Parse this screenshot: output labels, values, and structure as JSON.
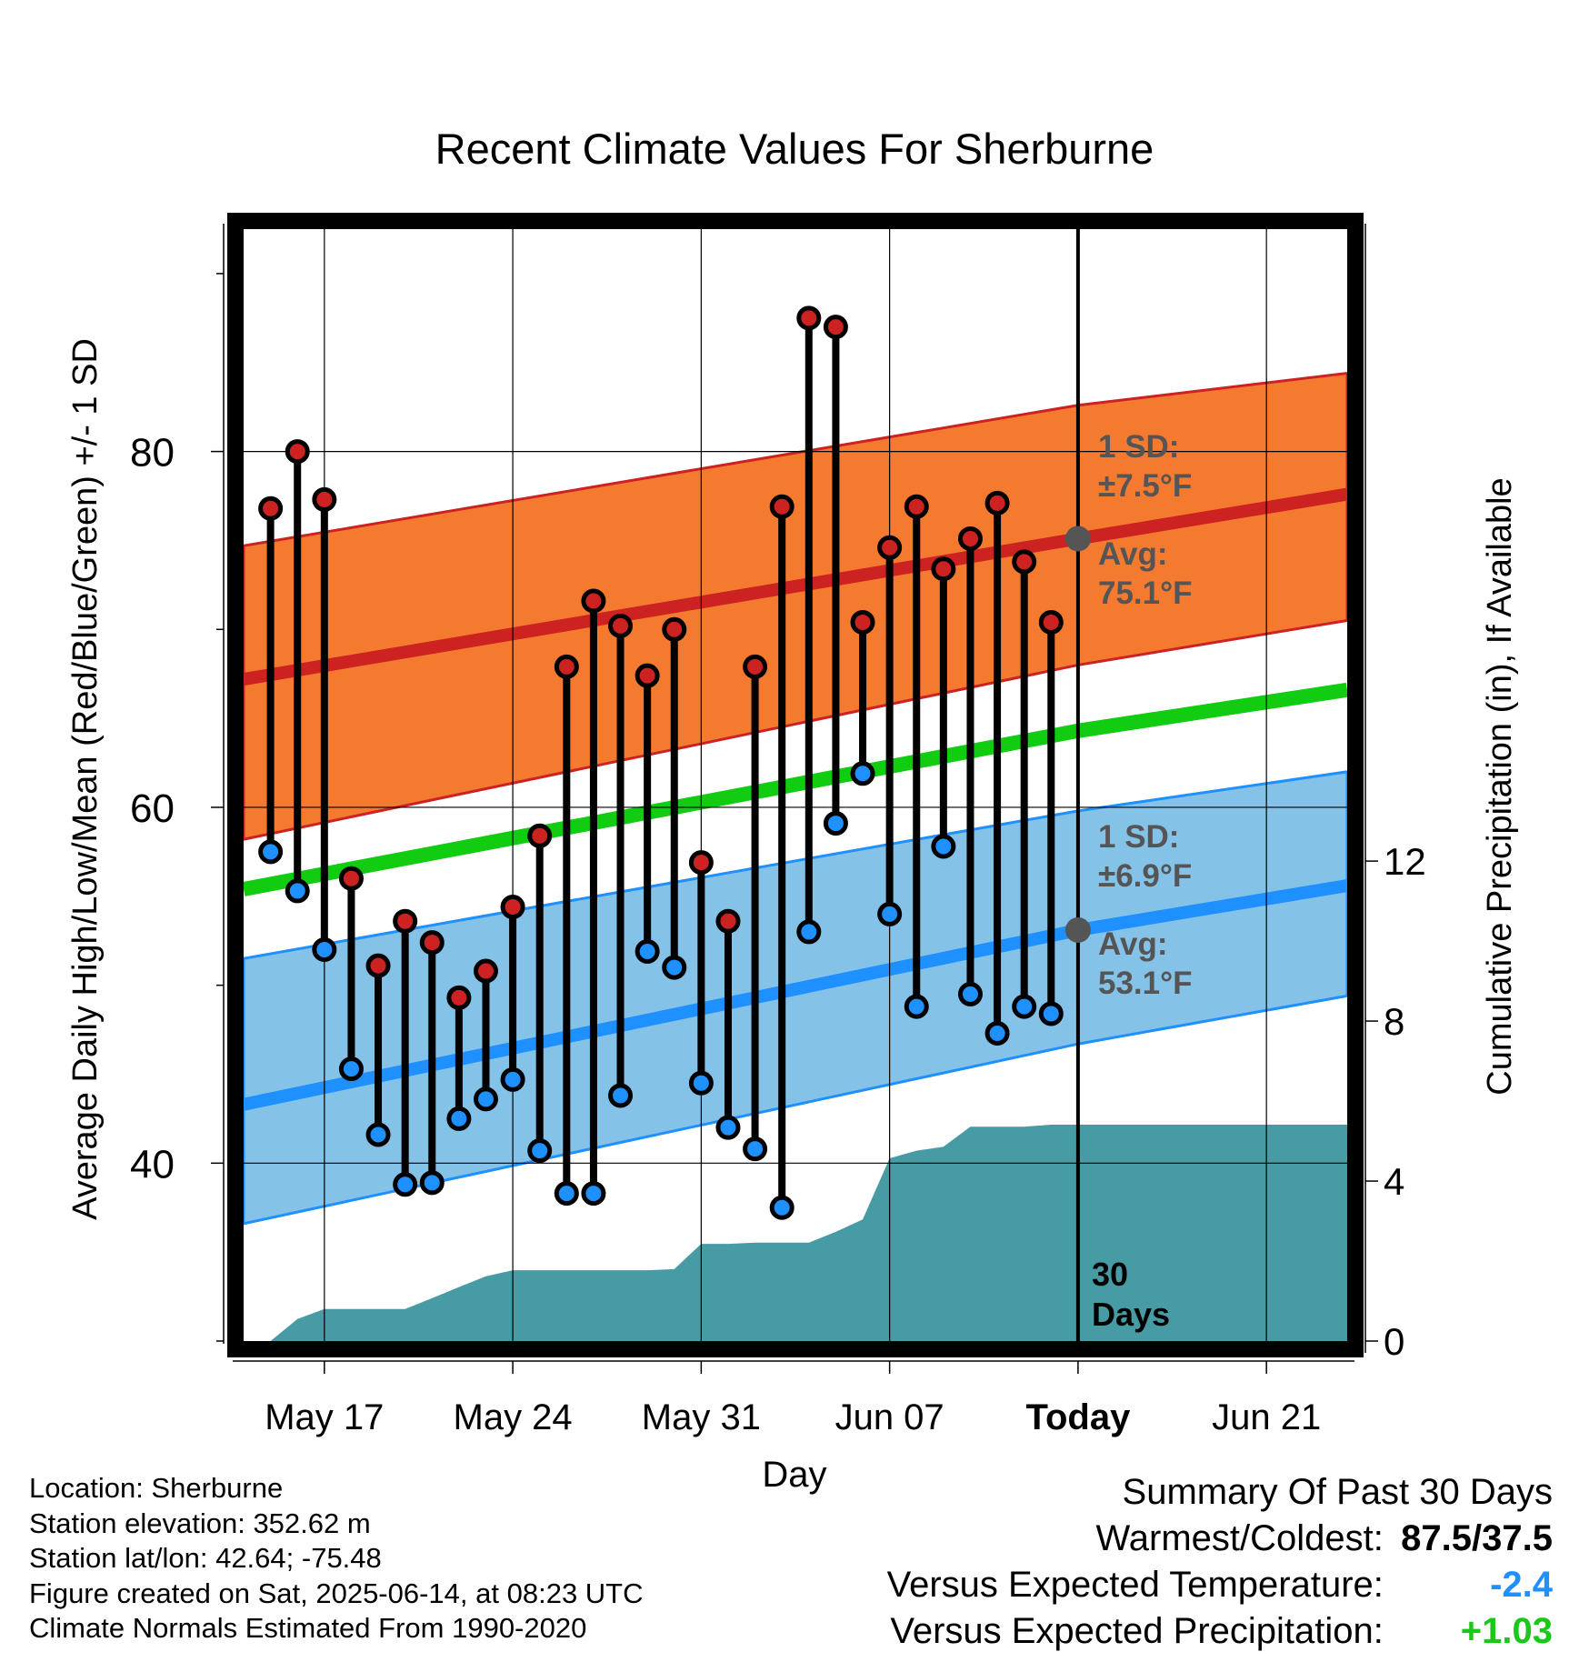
{
  "chart_data": {
    "type": "line",
    "title": "Recent Climate Values For Sherburne",
    "xlabel": "Day",
    "ylabel": "Average Daily High/Low/Mean (Red/Blue/Green) +/- 1 SD",
    "y2label": "Cumulative Precipitation (in), If Available",
    "x_tick_labels": [
      "May 17",
      "May 24",
      "May 31",
      "Jun 07",
      "Today",
      "Jun 21"
    ],
    "x_tick_dates": [
      "2025-05-17",
      "2025-05-24",
      "2025-05-31",
      "2025-06-07",
      "2025-06-14",
      "2025-06-21"
    ],
    "today": "2025-06-14",
    "xlim": [
      "2025-05-14",
      "2025-06-24"
    ],
    "ylim": [
      30,
      92.5
    ],
    "y_ticks": [
      40,
      60,
      80
    ],
    "y2lim": [
      0,
      27.8
    ],
    "y2_ticks": [
      0,
      4,
      8,
      12
    ],
    "grid": true,
    "colors": {
      "high": "#cc2222",
      "low": "#1e90ff",
      "mean": "#11cc11",
      "high_band": "#f47a30",
      "low_band": "#85c2e8",
      "precip": "#479ba4",
      "avg_marker": "#555555"
    },
    "normals": {
      "dates": [
        "2025-05-14",
        "2025-06-14",
        "2025-06-24"
      ],
      "high_mean": [
        67.2,
        75.1,
        77.6
      ],
      "high_upper": [
        74.7,
        82.6,
        84.4
      ],
      "high_lower": [
        58.2,
        68.0,
        70.5
      ],
      "low_mean": [
        43.3,
        53.1,
        55.6
      ],
      "low_upper": [
        51.5,
        59.8,
        62.0
      ],
      "low_lower": [
        36.6,
        46.7,
        49.4
      ],
      "avg_mean": [
        55.4,
        64.3,
        66.6
      ]
    },
    "series": [
      {
        "name": "High",
        "x": [
          "2025-05-15",
          "2025-05-16",
          "2025-05-17",
          "2025-05-18",
          "2025-05-19",
          "2025-05-20",
          "2025-05-21",
          "2025-05-22",
          "2025-05-23",
          "2025-05-24",
          "2025-05-25",
          "2025-05-26",
          "2025-05-27",
          "2025-05-28",
          "2025-05-29",
          "2025-05-30",
          "2025-05-31",
          "2025-06-01",
          "2025-06-02",
          "2025-06-03",
          "2025-06-04",
          "2025-06-05",
          "2025-06-06",
          "2025-06-07",
          "2025-06-08",
          "2025-06-09",
          "2025-06-10",
          "2025-06-11",
          "2025-06-12",
          "2025-06-13"
        ],
        "values": [
          76.8,
          80.0,
          77.3,
          56.0,
          51.1,
          53.6,
          52.4,
          49.3,
          50.8,
          54.4,
          58.4,
          67.9,
          71.6,
          70.2,
          67.4,
          70.0,
          56.9,
          53.6,
          67.9,
          76.9,
          87.5,
          87.0,
          70.4,
          74.6,
          76.9,
          73.4,
          75.1,
          77.1,
          73.8,
          70.4
        ]
      },
      {
        "name": "Low",
        "x": [
          "2025-05-15",
          "2025-05-16",
          "2025-05-17",
          "2025-05-18",
          "2025-05-19",
          "2025-05-20",
          "2025-05-21",
          "2025-05-22",
          "2025-05-23",
          "2025-05-24",
          "2025-05-25",
          "2025-05-26",
          "2025-05-27",
          "2025-05-28",
          "2025-05-29",
          "2025-05-30",
          "2025-05-31",
          "2025-06-01",
          "2025-06-02",
          "2025-06-03",
          "2025-06-04",
          "2025-06-05",
          "2025-06-06",
          "2025-06-07",
          "2025-06-08",
          "2025-06-09",
          "2025-06-10",
          "2025-06-11",
          "2025-06-12",
          "2025-06-13"
        ],
        "values": [
          57.5,
          55.3,
          52.0,
          45.3,
          41.6,
          38.8,
          38.9,
          42.5,
          43.6,
          44.7,
          40.7,
          38.3,
          38.3,
          43.8,
          51.9,
          51.0,
          44.5,
          42.0,
          40.8,
          37.5,
          53.0,
          59.1,
          61.9,
          54.0,
          48.8,
          57.8,
          49.5,
          47.3,
          48.8,
          48.4
        ]
      }
    ],
    "precipitation": {
      "x": [
        "2025-05-15",
        "2025-05-16",
        "2025-05-17",
        "2025-05-18",
        "2025-05-19",
        "2025-05-20",
        "2025-05-21",
        "2025-05-22",
        "2025-05-23",
        "2025-05-24",
        "2025-05-25",
        "2025-05-26",
        "2025-05-27",
        "2025-05-28",
        "2025-05-29",
        "2025-05-30",
        "2025-05-31",
        "2025-06-01",
        "2025-06-02",
        "2025-06-03",
        "2025-06-04",
        "2025-06-05",
        "2025-06-06",
        "2025-06-07",
        "2025-06-08",
        "2025-06-09",
        "2025-06-10",
        "2025-06-11",
        "2025-06-12",
        "2025-06-13",
        "2025-06-14",
        "2025-06-24"
      ],
      "values": [
        0.0,
        0.55,
        0.8,
        0.8,
        0.8,
        0.8,
        1.07,
        1.35,
        1.62,
        1.77,
        1.77,
        1.77,
        1.77,
        1.77,
        1.77,
        1.8,
        2.43,
        2.43,
        2.46,
        2.46,
        2.46,
        2.73,
        3.04,
        4.57,
        4.76,
        4.86,
        5.36,
        5.36,
        5.36,
        5.41,
        5.41,
        5.41
      ]
    },
    "annotations": {
      "high_sd": "1 SD:",
      "high_sd_value": "±7.5°F",
      "high_avg": "Avg:",
      "high_avg_value": "75.1°F",
      "low_sd": "1 SD:",
      "low_sd_value": "±6.9°F",
      "low_avg": "Avg:",
      "low_avg_value": "53.1°F",
      "days_count": "30",
      "days_label": "Days"
    }
  },
  "info": {
    "location": "Location: Sherburne",
    "elevation": "Station elevation: 352.62 m",
    "latlon": "Station lat/lon: 42.64; -75.48",
    "created": "Figure created on Sat, 2025-06-14, at 08:23 UTC",
    "normals": "Climate Normals Estimated From 1990-2020"
  },
  "summary": {
    "title": "Summary Of Past 30 Days",
    "warmest_label": "Warmest/Coldest:",
    "warmest_value": "87.5/37.5",
    "temp_label": "Versus Expected Temperature:",
    "temp_value": "-2.4",
    "precip_label": "Versus Expected Precipitation:",
    "precip_value": "+1.03"
  }
}
